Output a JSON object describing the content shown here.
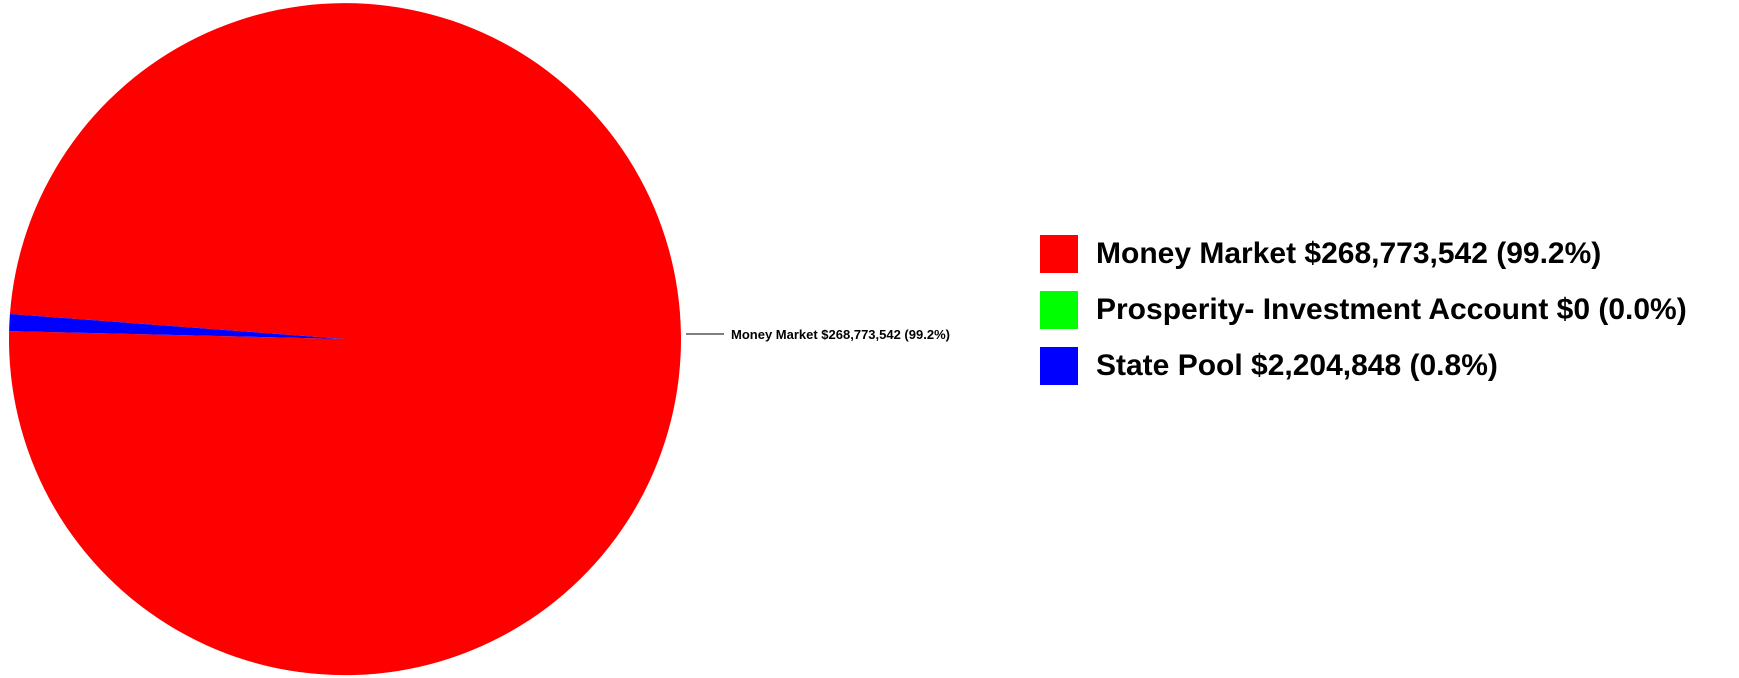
{
  "chart_data": {
    "type": "pie",
    "categories": [
      "Money Market $268,773,542 (99.2%)",
      "Prosperity- Investment Account $0 (0.0%)",
      "State Pool $2,204,848 (0.8%)"
    ],
    "values": [
      268773542,
      0,
      2204848
    ],
    "colors": [
      "#ff0000",
      "#00ff00",
      "#0000ff"
    ],
    "slice_labels": [
      "Money Market $268,773,542 (99.2%)",
      "",
      ""
    ],
    "legend_placement": "right"
  }
}
